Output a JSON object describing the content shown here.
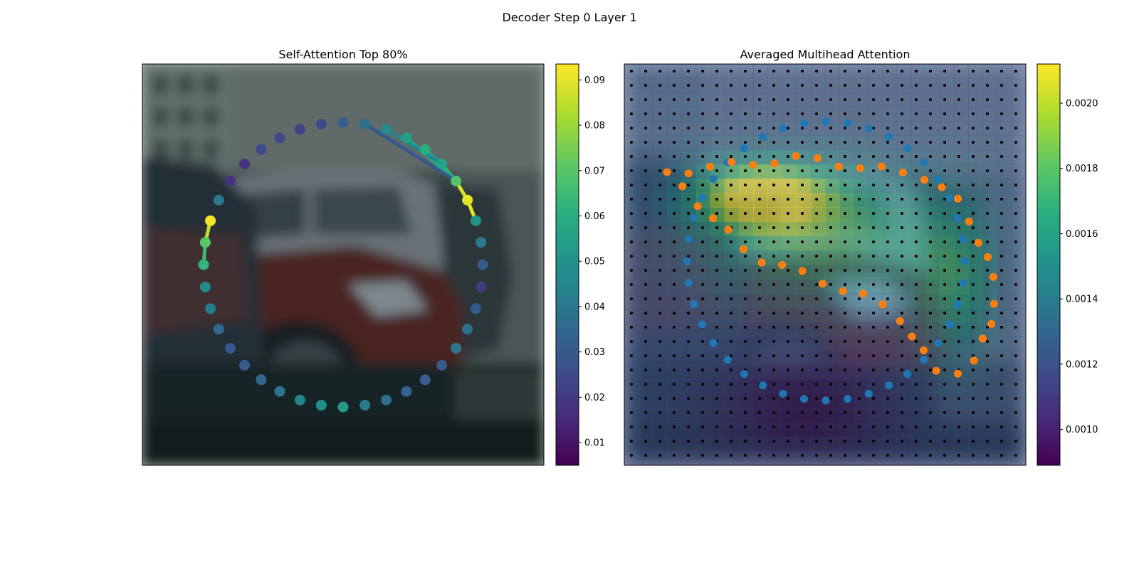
{
  "figure": {
    "suptitle": "Decoder Step 0 Layer 1"
  },
  "chart_data": [
    {
      "type": "scatter",
      "title": "Self-Attention Top 80%",
      "background": "blurred photo of parked cars (red car center, white SUV behind)",
      "colormap": "viridis",
      "colorbar": {
        "range": [
          0.005,
          0.0935
        ],
        "ticks": [
          0.01,
          0.02,
          0.03,
          0.04,
          0.05,
          0.06,
          0.07,
          0.08,
          0.09
        ],
        "tick_labels": [
          "0.01",
          "0.02",
          "0.03",
          "0.04",
          "0.05",
          "0.06",
          "0.07",
          "0.08",
          "0.09"
        ]
      },
      "contour_points": {
        "count": 40,
        "values": [
          0.053,
          0.049,
          0.044,
          0.039,
          0.034,
          0.03,
          0.028,
          0.035,
          0.042,
          0.047,
          0.063,
          0.07,
          0.092,
          0.04,
          0.018,
          0.018,
          0.025,
          0.025,
          0.022,
          0.025,
          0.031,
          0.037,
          0.047,
          0.055,
          0.06,
          0.056,
          0.069,
          0.09,
          0.05,
          0.04,
          0.03,
          0.02,
          0.03,
          0.038,
          0.04,
          0.03,
          0.031,
          0.033,
          0.037,
          0.041
        ]
      },
      "attention_edges": [
        {
          "from": 12,
          "to": 11,
          "value": 0.085
        },
        {
          "from": 11,
          "to": 10,
          "value": 0.065
        },
        {
          "from": 28,
          "to": 27,
          "value": 0.09
        },
        {
          "from": 27,
          "to": 26,
          "value": 0.088
        },
        {
          "from": 26,
          "to": 25,
          "value": 0.062
        },
        {
          "from": 25,
          "to": 24,
          "value": 0.055
        },
        {
          "from": 26,
          "to": 23,
          "value": 0.058
        },
        {
          "from": 25,
          "to": 22,
          "value": 0.045
        },
        {
          "from": 26,
          "to": 21,
          "value": 0.03
        }
      ]
    },
    {
      "type": "heatmap",
      "title": "Averaged Multihead Attention",
      "background": "blurred photo of parked cars overlaid with attention heatmap",
      "colormap": "viridis",
      "colorbar": {
        "range": [
          0.00089,
          0.00212
        ],
        "ticks": [
          0.001,
          0.0012,
          0.0014,
          0.0016,
          0.0018,
          0.002
        ],
        "tick_labels": [
          "0.0010",
          "0.0012",
          "0.0014",
          "0.0016",
          "0.0018",
          "0.0020"
        ]
      },
      "grid": {
        "rows": 28,
        "cols": 28,
        "marker": "black dot"
      },
      "series": [
        {
          "color": "#1f77b4",
          "count": 40
        },
        {
          "color": "#ff7f0e",
          "count": 40
        }
      ]
    }
  ]
}
